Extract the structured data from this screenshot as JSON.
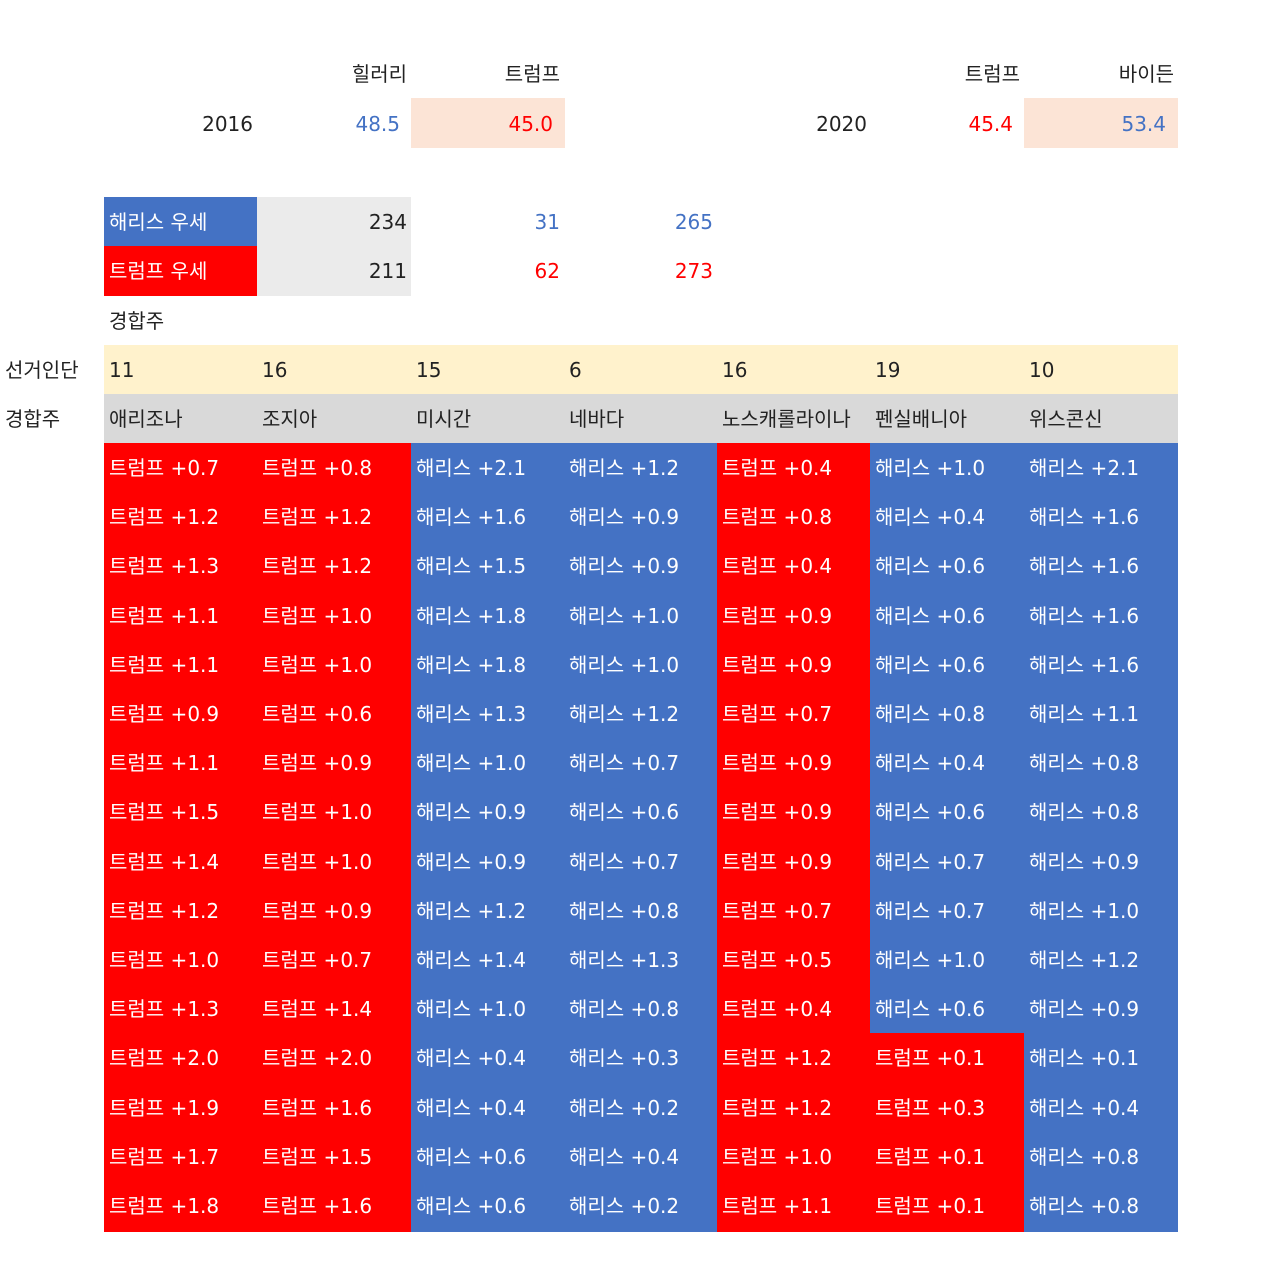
{
  "top": {
    "2016": {
      "year": "2016",
      "cand1": "힐러리",
      "cand2": "트럼프",
      "val1": "48.5",
      "val2": "45.0"
    },
    "2020": {
      "year": "2020",
      "cand1": "트럼프",
      "cand2": "바이든",
      "val1": "45.4",
      "val2": "53.4"
    }
  },
  "summary": [
    {
      "label": "해리스 우세",
      "a": "234",
      "b": "31",
      "c": "265",
      "color": "#4472c4"
    },
    {
      "label": "트럼프 우세",
      "a": "211",
      "b": "62",
      "c": "273",
      "color": "#ff0000"
    }
  ],
  "swing_title": "경합주",
  "row_labels": {
    "electors": "선거인단",
    "states": "경합주"
  },
  "states": [
    {
      "name": "애리조나",
      "electors": "11",
      "cells": [
        {
          "t": "트럼프 +0.7",
          "p": "T"
        },
        {
          "t": "트럼프 +1.2",
          "p": "T"
        },
        {
          "t": "트럼프 +1.3",
          "p": "T"
        },
        {
          "t": "트럼프 +1.1",
          "p": "T"
        },
        {
          "t": "트럼프 +1.1",
          "p": "T"
        },
        {
          "t": "트럼프 +0.9",
          "p": "T"
        },
        {
          "t": "트럼프 +1.1",
          "p": "T"
        },
        {
          "t": "트럼프 +1.5",
          "p": "T"
        },
        {
          "t": "트럼프 +1.4",
          "p": "T"
        },
        {
          "t": "트럼프 +1.2",
          "p": "T"
        },
        {
          "t": "트럼프 +1.0",
          "p": "T"
        },
        {
          "t": "트럼프 +1.3",
          "p": "T"
        },
        {
          "t": "트럼프 +2.0",
          "p": "T"
        },
        {
          "t": "트럼프 +1.9",
          "p": "T"
        },
        {
          "t": "트럼프 +1.7",
          "p": "T"
        },
        {
          "t": "트럼프 +1.8",
          "p": "T"
        }
      ]
    },
    {
      "name": "조지아",
      "electors": "16",
      "cells": [
        {
          "t": "트럼프 +0.8",
          "p": "T"
        },
        {
          "t": "트럼프 +1.2",
          "p": "T"
        },
        {
          "t": "트럼프 +1.2",
          "p": "T"
        },
        {
          "t": "트럼프 +1.0",
          "p": "T"
        },
        {
          "t": "트럼프 +1.0",
          "p": "T"
        },
        {
          "t": "트럼프 +0.6",
          "p": "T"
        },
        {
          "t": "트럼프 +0.9",
          "p": "T"
        },
        {
          "t": "트럼프 +1.0",
          "p": "T"
        },
        {
          "t": "트럼프 +1.0",
          "p": "T"
        },
        {
          "t": "트럼프 +0.9",
          "p": "T"
        },
        {
          "t": "트럼프 +0.7",
          "p": "T"
        },
        {
          "t": "트럼프 +1.4",
          "p": "T"
        },
        {
          "t": "트럼프 +2.0",
          "p": "T"
        },
        {
          "t": "트럼프 +1.6",
          "p": "T"
        },
        {
          "t": "트럼프 +1.5",
          "p": "T"
        },
        {
          "t": "트럼프 +1.6",
          "p": "T"
        }
      ]
    },
    {
      "name": "미시간",
      "electors": "15",
      "cells": [
        {
          "t": "해리스 +2.1",
          "p": "H"
        },
        {
          "t": "해리스 +1.6",
          "p": "H"
        },
        {
          "t": "해리스 +1.5",
          "p": "H"
        },
        {
          "t": "해리스 +1.8",
          "p": "H"
        },
        {
          "t": "해리스 +1.8",
          "p": "H"
        },
        {
          "t": "해리스 +1.3",
          "p": "H"
        },
        {
          "t": "해리스 +1.0",
          "p": "H"
        },
        {
          "t": "해리스 +0.9",
          "p": "H"
        },
        {
          "t": "해리스 +0.9",
          "p": "H"
        },
        {
          "t": "해리스 +1.2",
          "p": "H"
        },
        {
          "t": "해리스 +1.4",
          "p": "H"
        },
        {
          "t": "해리스 +1.0",
          "p": "H"
        },
        {
          "t": "해리스 +0.4",
          "p": "H"
        },
        {
          "t": "해리스 +0.4",
          "p": "H"
        },
        {
          "t": "해리스 +0.6",
          "p": "H"
        },
        {
          "t": "해리스 +0.6",
          "p": "H"
        }
      ]
    },
    {
      "name": "네바다",
      "electors": "6",
      "cells": [
        {
          "t": "해리스 +1.2",
          "p": "H"
        },
        {
          "t": "해리스 +0.9",
          "p": "H"
        },
        {
          "t": "해리스 +0.9",
          "p": "H"
        },
        {
          "t": "해리스 +1.0",
          "p": "H"
        },
        {
          "t": "해리스 +1.0",
          "p": "H"
        },
        {
          "t": "해리스 +1.2",
          "p": "H"
        },
        {
          "t": "해리스 +0.7",
          "p": "H"
        },
        {
          "t": "해리스 +0.6",
          "p": "H"
        },
        {
          "t": "해리스 +0.7",
          "p": "H"
        },
        {
          "t": "해리스 +0.8",
          "p": "H"
        },
        {
          "t": "해리스 +1.3",
          "p": "H"
        },
        {
          "t": "해리스 +0.8",
          "p": "H"
        },
        {
          "t": "해리스 +0.3",
          "p": "H"
        },
        {
          "t": "해리스 +0.2",
          "p": "H"
        },
        {
          "t": "해리스 +0.4",
          "p": "H"
        },
        {
          "t": "해리스 +0.2",
          "p": "H"
        }
      ]
    },
    {
      "name": "노스캐롤라이나",
      "electors": "16",
      "cells": [
        {
          "t": "트럼프 +0.4",
          "p": "T"
        },
        {
          "t": "트럼프 +0.8",
          "p": "T"
        },
        {
          "t": "트럼프 +0.4",
          "p": "T"
        },
        {
          "t": "트럼프 +0.9",
          "p": "T"
        },
        {
          "t": "트럼프 +0.9",
          "p": "T"
        },
        {
          "t": "트럼프 +0.7",
          "p": "T"
        },
        {
          "t": "트럼프 +0.9",
          "p": "T"
        },
        {
          "t": "트럼프 +0.9",
          "p": "T"
        },
        {
          "t": "트럼프 +0.9",
          "p": "T"
        },
        {
          "t": "트럼프 +0.7",
          "p": "T"
        },
        {
          "t": "트럼프 +0.5",
          "p": "T"
        },
        {
          "t": "트럼프 +0.4",
          "p": "T"
        },
        {
          "t": "트럼프 +1.2",
          "p": "T"
        },
        {
          "t": "트럼프 +1.2",
          "p": "T"
        },
        {
          "t": "트럼프 +1.0",
          "p": "T"
        },
        {
          "t": "트럼프 +1.1",
          "p": "T"
        }
      ]
    },
    {
      "name": "펜실배니아",
      "electors": "19",
      "cells": [
        {
          "t": "해리스 +1.0",
          "p": "H"
        },
        {
          "t": "해리스 +0.4",
          "p": "H"
        },
        {
          "t": "해리스 +0.6",
          "p": "H"
        },
        {
          "t": "해리스 +0.6",
          "p": "H"
        },
        {
          "t": "해리스 +0.6",
          "p": "H"
        },
        {
          "t": "해리스 +0.8",
          "p": "H"
        },
        {
          "t": "해리스 +0.4",
          "p": "H"
        },
        {
          "t": "해리스 +0.6",
          "p": "H"
        },
        {
          "t": "해리스 +0.7",
          "p": "H"
        },
        {
          "t": "해리스 +0.7",
          "p": "H"
        },
        {
          "t": "해리스 +1.0",
          "p": "H"
        },
        {
          "t": "해리스 +0.6",
          "p": "H"
        },
        {
          "t": "트럼프 +0.1",
          "p": "T"
        },
        {
          "t": "트럼프 +0.3",
          "p": "T"
        },
        {
          "t": "트럼프 +0.1",
          "p": "T"
        },
        {
          "t": "트럼프 +0.1",
          "p": "T"
        }
      ]
    },
    {
      "name": "위스콘신",
      "electors": "10",
      "cells": [
        {
          "t": "해리스 +2.1",
          "p": "H"
        },
        {
          "t": "해리스 +1.6",
          "p": "H"
        },
        {
          "t": "해리스 +1.6",
          "p": "H"
        },
        {
          "t": "해리스 +1.6",
          "p": "H"
        },
        {
          "t": "해리스 +1.6",
          "p": "H"
        },
        {
          "t": "해리스 +1.1",
          "p": "H"
        },
        {
          "t": "해리스 +0.8",
          "p": "H"
        },
        {
          "t": "해리스 +0.8",
          "p": "H"
        },
        {
          "t": "해리스 +0.9",
          "p": "H"
        },
        {
          "t": "해리스 +1.0",
          "p": "H"
        },
        {
          "t": "해리스 +1.2",
          "p": "H"
        },
        {
          "t": "해리스 +0.9",
          "p": "H"
        },
        {
          "t": "해리스 +0.1",
          "p": "H"
        },
        {
          "t": "해리스 +0.4",
          "p": "H"
        },
        {
          "t": "해리스 +0.8",
          "p": "H"
        },
        {
          "t": "해리스 +0.8",
          "p": "H"
        }
      ]
    }
  ],
  "colors": {
    "trump": "#ff0000",
    "harris": "#4472c4",
    "electors_bg": "#fff2cc",
    "states_bg": "#d9d9d9"
  }
}
